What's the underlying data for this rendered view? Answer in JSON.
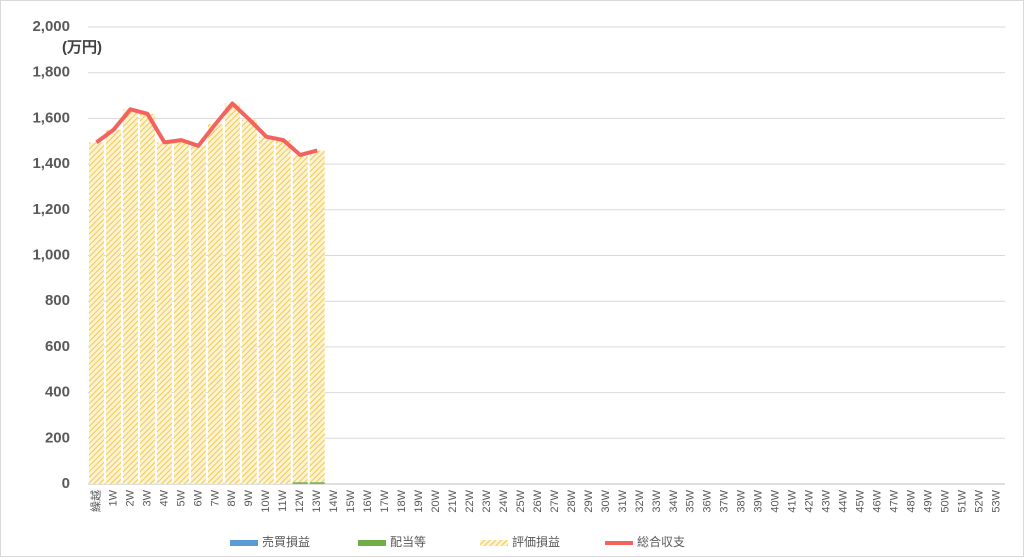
{
  "chart_data": {
    "type": "bar",
    "y_label": "(万円)",
    "categories": [
      "繰越",
      "1W",
      "2W",
      "3W",
      "4W",
      "5W",
      "6W",
      "7W",
      "8W",
      "9W",
      "10W",
      "11W",
      "12W",
      "13W",
      "14W",
      "15W",
      "16W",
      "17W",
      "18W",
      "19W",
      "20W",
      "21W",
      "22W",
      "23W",
      "24W",
      "25W",
      "26W",
      "27W",
      "28W",
      "29W",
      "30W",
      "31W",
      "32W",
      "33W",
      "34W",
      "35W",
      "36W",
      "37W",
      "38W",
      "39W",
      "40W",
      "41W",
      "42W",
      "43W",
      "44W",
      "45W",
      "46W",
      "47W",
      "48W",
      "49W",
      "50W",
      "51W",
      "52W",
      "53W"
    ],
    "series": [
      {
        "name": "売買損益",
        "color": "#5b9bd5",
        "values": [
          0,
          0,
          0,
          0,
          0,
          0,
          0,
          0,
          0,
          0,
          0,
          0,
          3,
          3,
          null,
          null,
          null,
          null,
          null,
          null,
          null,
          null,
          null,
          null,
          null,
          null,
          null,
          null,
          null,
          null,
          null,
          null,
          null,
          null,
          null,
          null,
          null,
          null,
          null,
          null,
          null,
          null,
          null,
          null,
          null,
          null,
          null,
          null,
          null,
          null,
          null,
          null,
          null,
          null
        ]
      },
      {
        "name": "配当等",
        "color": "#70ad47",
        "values": [
          0,
          0,
          0,
          0,
          0,
          0,
          0,
          0,
          0,
          0,
          0,
          0,
          5,
          5,
          null,
          null,
          null,
          null,
          null,
          null,
          null,
          null,
          null,
          null,
          null,
          null,
          null,
          null,
          null,
          null,
          null,
          null,
          null,
          null,
          null,
          null,
          null,
          null,
          null,
          null,
          null,
          null,
          null,
          null,
          null,
          null,
          null,
          null,
          null,
          null,
          null,
          null,
          null,
          null
        ]
      },
      {
        "name": "評価損益",
        "color": "#f5d77a",
        "values": [
          1495,
          1550,
          1640,
          1620,
          1495,
          1505,
          1480,
          1575,
          1665,
          1595,
          1520,
          1505,
          1432,
          1452,
          null,
          null,
          null,
          null,
          null,
          null,
          null,
          null,
          null,
          null,
          null,
          null,
          null,
          null,
          null,
          null,
          null,
          null,
          null,
          null,
          null,
          null,
          null,
          null,
          null,
          null,
          null,
          null,
          null,
          null,
          null,
          null,
          null,
          null,
          null,
          null,
          null,
          null,
          null,
          null
        ]
      },
      {
        "name": "総合収支",
        "color": "#f4625d",
        "kind": "line",
        "values": [
          1495,
          1550,
          1640,
          1620,
          1495,
          1505,
          1480,
          1575,
          1665,
          1595,
          1520,
          1505,
          1440,
          1460,
          null,
          null,
          null,
          null,
          null,
          null,
          null,
          null,
          null,
          null,
          null,
          null,
          null,
          null,
          null,
          null,
          null,
          null,
          null,
          null,
          null,
          null,
          null,
          null,
          null,
          null,
          null,
          null,
          null,
          null,
          null,
          null,
          null,
          null,
          null,
          null,
          null,
          null,
          null,
          null
        ]
      }
    ],
    "ylim": [
      0,
      2000
    ],
    "yticks": [
      0,
      200,
      400,
      600,
      800,
      {
        "value": 1000,
        "label": "1,000"
      },
      {
        "value": 1200,
        "label": "1,200"
      },
      {
        "value": 1400,
        "label": "1,400"
      },
      {
        "value": 1600,
        "label": "1,600"
      },
      {
        "value": 1800,
        "label": "1,800"
      },
      {
        "value": 2000,
        "label": "2,000"
      }
    ],
    "grid": true
  }
}
